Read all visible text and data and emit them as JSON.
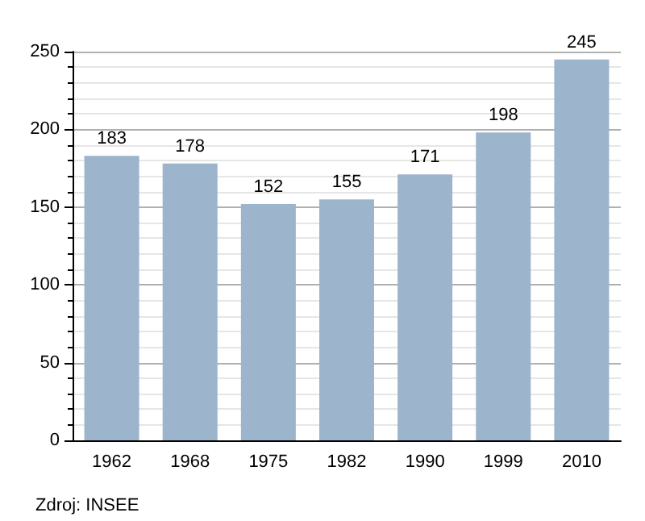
{
  "chart_data": {
    "type": "bar",
    "categories": [
      "1962",
      "1968",
      "1975",
      "1982",
      "1990",
      "1999",
      "2010"
    ],
    "values": [
      183,
      178,
      152,
      155,
      171,
      198,
      245
    ],
    "color": "#9cb4cc",
    "ylim": [
      0,
      250
    ],
    "yticks": [
      0,
      50,
      100,
      150,
      200,
      250
    ],
    "grid": true,
    "data_labels": true,
    "annotations": [
      "Zdroj: INSEE"
    ]
  }
}
